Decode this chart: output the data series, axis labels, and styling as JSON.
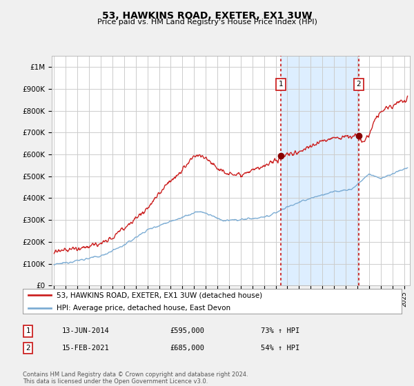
{
  "title": "53, HAWKINS ROAD, EXETER, EX1 3UW",
  "subtitle": "Price paid vs. HM Land Registry's House Price Index (HPI)",
  "ylim": [
    0,
    1050000
  ],
  "xlim_start": 1994.8,
  "xlim_end": 2025.5,
  "yticks": [
    0,
    100000,
    200000,
    300000,
    400000,
    500000,
    600000,
    700000,
    800000,
    900000,
    1000000
  ],
  "ytick_labels": [
    "£0",
    "£100K",
    "£200K",
    "£300K",
    "£400K",
    "£500K",
    "£600K",
    "£700K",
    "£800K",
    "£900K",
    "£1M"
  ],
  "xtick_years": [
    1995,
    1996,
    1997,
    1998,
    1999,
    2000,
    2001,
    2002,
    2003,
    2004,
    2005,
    2006,
    2007,
    2008,
    2009,
    2010,
    2011,
    2012,
    2013,
    2014,
    2015,
    2016,
    2017,
    2018,
    2019,
    2020,
    2021,
    2022,
    2023,
    2024,
    2025
  ],
  "red_line_color": "#cc2222",
  "blue_line_color": "#7dadd4",
  "shade_color": "#ddeeff",
  "marker1_x": 2014.45,
  "marker1_y": 595000,
  "marker2_x": 2021.12,
  "marker2_y": 685000,
  "legend_line1": "53, HAWKINS ROAD, EXETER, EX1 3UW (detached house)",
  "legend_line2": "HPI: Average price, detached house, East Devon",
  "marker1_date": "13-JUN-2014",
  "marker1_price": "£595,000",
  "marker1_hpi": "73% ↑ HPI",
  "marker2_date": "15-FEB-2021",
  "marker2_price": "£685,000",
  "marker2_hpi": "54% ↑ HPI",
  "footer": "Contains HM Land Registry data © Crown copyright and database right 2024.\nThis data is licensed under the Open Government Licence v3.0.",
  "background_color": "#f0f0f0",
  "plot_bg_color": "#ffffff",
  "grid_color": "#cccccc"
}
